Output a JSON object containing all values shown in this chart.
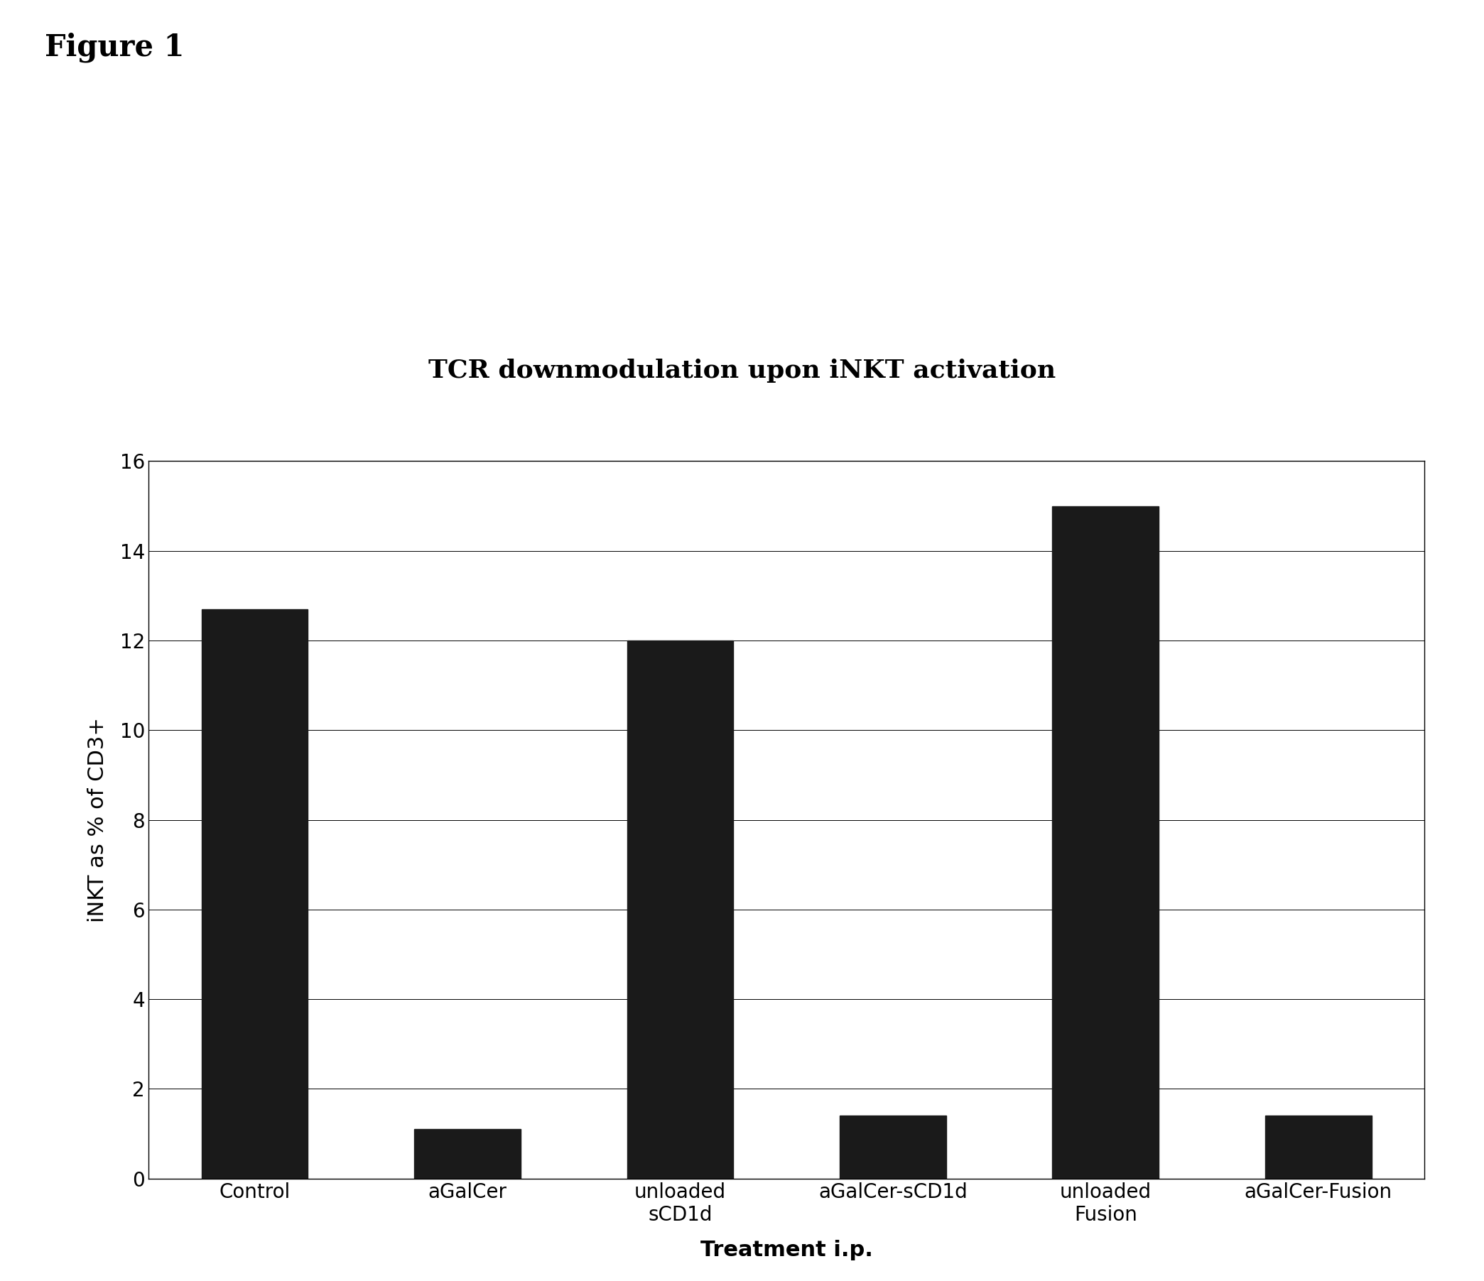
{
  "title": "TCR downmodulation upon iNKT activation",
  "figure_label": "Figure 1",
  "categories": [
    "Control",
    "aGalCer",
    "unloaded\nsCD1d",
    "aGalCer-sCD1d",
    "unloaded\nFusion",
    "aGalCer-Fusion"
  ],
  "values": [
    12.7,
    1.1,
    12.0,
    1.4,
    15.0,
    1.4
  ],
  "bar_color": "#1a1a1a",
  "xlabel": "Treatment i.p.",
  "ylabel": "iNKT as % of CD3+",
  "ylim": [
    0,
    16
  ],
  "yticks": [
    0,
    2,
    4,
    6,
    8,
    10,
    12,
    14,
    16
  ],
  "background_color": "#ffffff",
  "plot_bg_color": "#ffffff",
  "title_fontsize": 26,
  "axis_label_fontsize": 22,
  "tick_fontsize": 20,
  "figure_label_fontsize": 30,
  "bar_width": 0.5
}
